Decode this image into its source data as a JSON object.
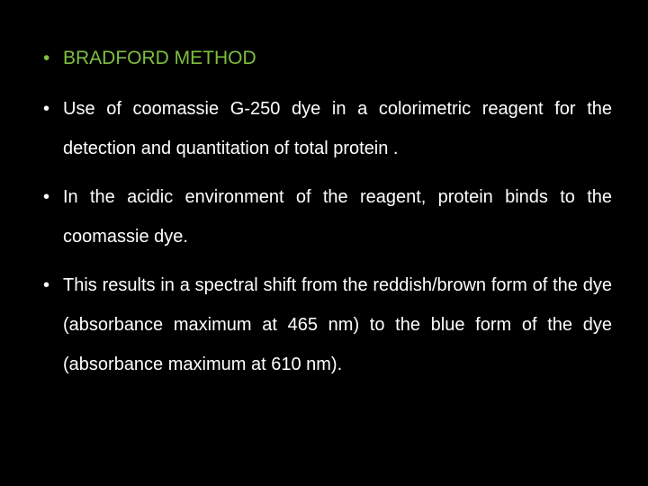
{
  "slide": {
    "background_color": "#000000",
    "title_color": "#7fbf3f",
    "body_color": "#ffffff",
    "title_fontsize": 21,
    "body_fontsize": 20,
    "bullets": [
      {
        "type": "title",
        "text": "BRADFORD METHOD"
      },
      {
        "type": "body",
        "text": "Use of coomassie G-250 dye in a colorimetric reagent for the detection and quantitation of total protein ."
      },
      {
        "type": "body",
        "text": "In the acidic environment of the reagent, protein binds to the coomassie dye."
      },
      {
        "type": "body",
        "text": "This results in a spectral shift from the reddish/brown form of the dye (absorbance maximum at 465 nm) to the blue form of the dye (absorbance maximum at 610 nm)."
      }
    ]
  }
}
